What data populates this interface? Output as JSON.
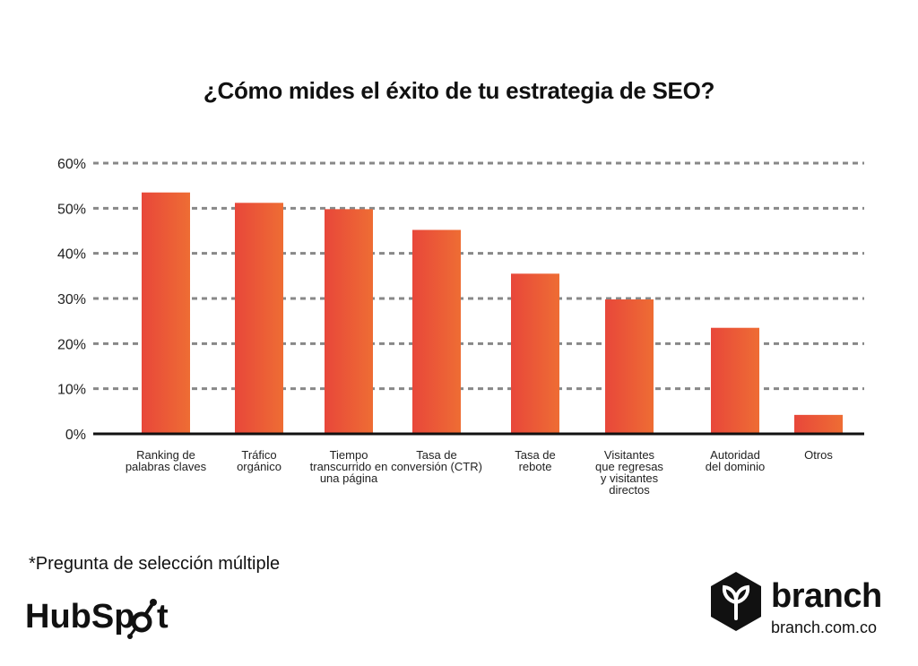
{
  "chart_data": {
    "type": "bar",
    "title": "¿Cómo mides el éxito de tu estrategia de SEO?",
    "categories": [
      [
        "Ranking de",
        "palabras claves"
      ],
      [
        "Tráfico",
        "orgánico"
      ],
      [
        "Tiempo",
        "transcurrido en",
        "una página"
      ],
      [
        "Tasa de",
        "conversión (CTR)"
      ],
      [
        "Tasa de",
        "rebote"
      ],
      [
        "Visitantes",
        "que regresas",
        "y visitantes",
        "directos"
      ],
      [
        "Autoridad",
        "del dominio"
      ],
      [
        "Otros"
      ]
    ],
    "values": [
      53.5,
      51.2,
      49.8,
      45.2,
      35.5,
      29.8,
      23.5,
      4.2
    ],
    "ylim": [
      0,
      60
    ],
    "yticks": [
      "0%",
      "10%",
      "20%",
      "30%",
      "40%",
      "50%",
      "60%"
    ],
    "grid": true,
    "colors": {
      "bar_start": "#e8473a",
      "bar_end": "#ee6d34",
      "grid": "#888888",
      "axis": "#111111"
    }
  },
  "footnote": "*Pregunta de selección múltiple",
  "logos": {
    "hubspot": "HubSpot",
    "branch_name": "branch",
    "branch_url": "branch.com.co"
  }
}
